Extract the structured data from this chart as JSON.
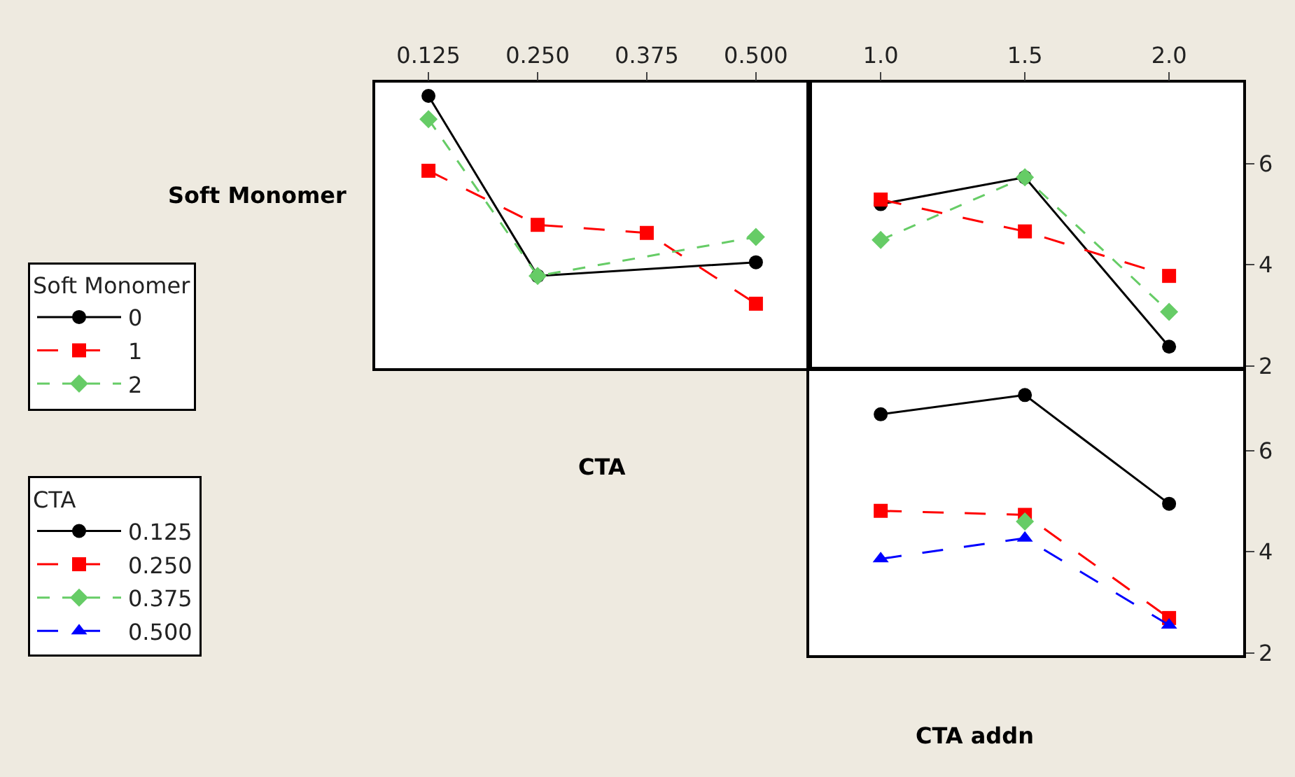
{
  "chart_data": [
    {
      "type": "line",
      "xlabel": "CTA",
      "ylabel": "Soft Monomer",
      "legend_title": "Soft Monomer",
      "legend": "left",
      "x": [
        0.125,
        0.25,
        0.375,
        0.5
      ],
      "xlim": [
        0.064,
        0.561
      ],
      "xticks": [
        {
          "value": 0.125,
          "label": "0.125"
        },
        {
          "value": 0.25,
          "label": "0.250"
        },
        {
          "value": 0.375,
          "label": "0.375"
        },
        {
          "value": 0.5,
          "label": "0.500"
        }
      ],
      "ylim": [
        1.95,
        7.6
      ],
      "tick_labels": "x",
      "grid": false,
      "series": [
        {
          "name": "0",
          "color": "#000000",
          "marker": "circle",
          "line_style": "solid",
          "values": [
            7.34,
            3.78,
            null,
            4.05
          ]
        },
        {
          "name": "1",
          "color": "#ff0000",
          "marker": "square",
          "line_style": "dashed",
          "values": [
            5.86,
            4.79,
            4.63,
            3.23
          ]
        },
        {
          "name": "2",
          "color": "#66cc66",
          "marker": "diamond",
          "line_style": "dotted",
          "values": [
            6.88,
            3.78,
            null,
            4.55
          ]
        }
      ]
    },
    {
      "type": "line",
      "x": [
        1.0,
        1.5,
        2.0
      ],
      "xlim": [
        0.752,
        2.257
      ],
      "xticks": [
        {
          "value": 1.0,
          "label": "1.0"
        },
        {
          "value": 1.5,
          "label": "1.5"
        },
        {
          "value": 2.0,
          "label": "2.0"
        }
      ],
      "ylim": [
        1.95,
        7.6
      ],
      "yticks": [
        2,
        4,
        6
      ],
      "grid": false,
      "legend": false,
      "series": [
        {
          "color": "#000000",
          "marker": "circle",
          "line_style": "solid",
          "values": [
            5.2,
            5.73,
            2.38
          ]
        },
        {
          "color": "#ff0000",
          "marker": "square",
          "line_style": "dashed",
          "values": [
            5.29,
            4.66,
            3.78
          ]
        },
        {
          "color": "#66cc66",
          "marker": "diamond",
          "line_style": "dotted",
          "values": [
            4.49,
            5.73,
            3.07
          ]
        }
      ]
    },
    {
      "type": "line",
      "xlabel": "CTA addn",
      "legend_title": "CTA",
      "legend": "left",
      "x": [
        1.0,
        1.5,
        2.0
      ],
      "xlim": [
        0.752,
        2.257
      ],
      "ylim": [
        1.95,
        7.6
      ],
      "yticks": [
        2,
        4,
        6
      ],
      "tick_labels": "y",
      "grid": false,
      "series": [
        {
          "name": "0.125",
          "color": "#000000",
          "marker": "circle",
          "line_style": "solid",
          "values": [
            6.72,
            7.1,
            4.95
          ]
        },
        {
          "name": "0.250",
          "color": "#ff0000",
          "marker": "square",
          "line_style": "dashed",
          "values": [
            4.81,
            4.73,
            2.69
          ]
        },
        {
          "name": "0.375",
          "color": "#66cc66",
          "marker": "diamond",
          "line_style": "dotted",
          "values": [
            null,
            4.6,
            null
          ]
        },
        {
          "name": "0.500",
          "color": "#0000ff",
          "marker": "triangle",
          "line_style": "dashed",
          "values": [
            3.86,
            4.27,
            2.55
          ]
        }
      ]
    }
  ]
}
